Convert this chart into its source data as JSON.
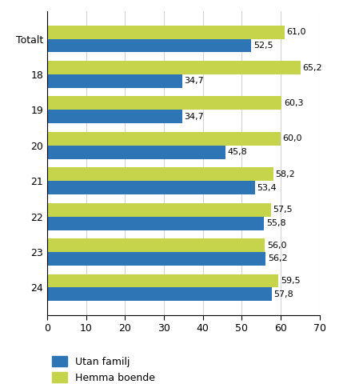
{
  "categories": [
    "Totalt",
    "18",
    "19",
    "20",
    "21",
    "22",
    "23",
    "24"
  ],
  "utan_familj": [
    52.5,
    34.7,
    34.7,
    45.8,
    53.4,
    55.8,
    56.2,
    57.8
  ],
  "hemma_boende": [
    61.0,
    65.2,
    60.3,
    60.0,
    58.2,
    57.5,
    56.0,
    59.5
  ],
  "utan_familj_color": "#2E75B6",
  "hemma_boende_color": "#C5D44B",
  "xlim": [
    0,
    70
  ],
  "xticks": [
    0,
    10,
    20,
    30,
    40,
    50,
    60,
    70
  ],
  "legend_utan": "Utan familj",
  "legend_hemma": "Hemma boende",
  "bar_height": 0.38,
  "label_fontsize": 8,
  "tick_fontsize": 9,
  "legend_fontsize": 9
}
